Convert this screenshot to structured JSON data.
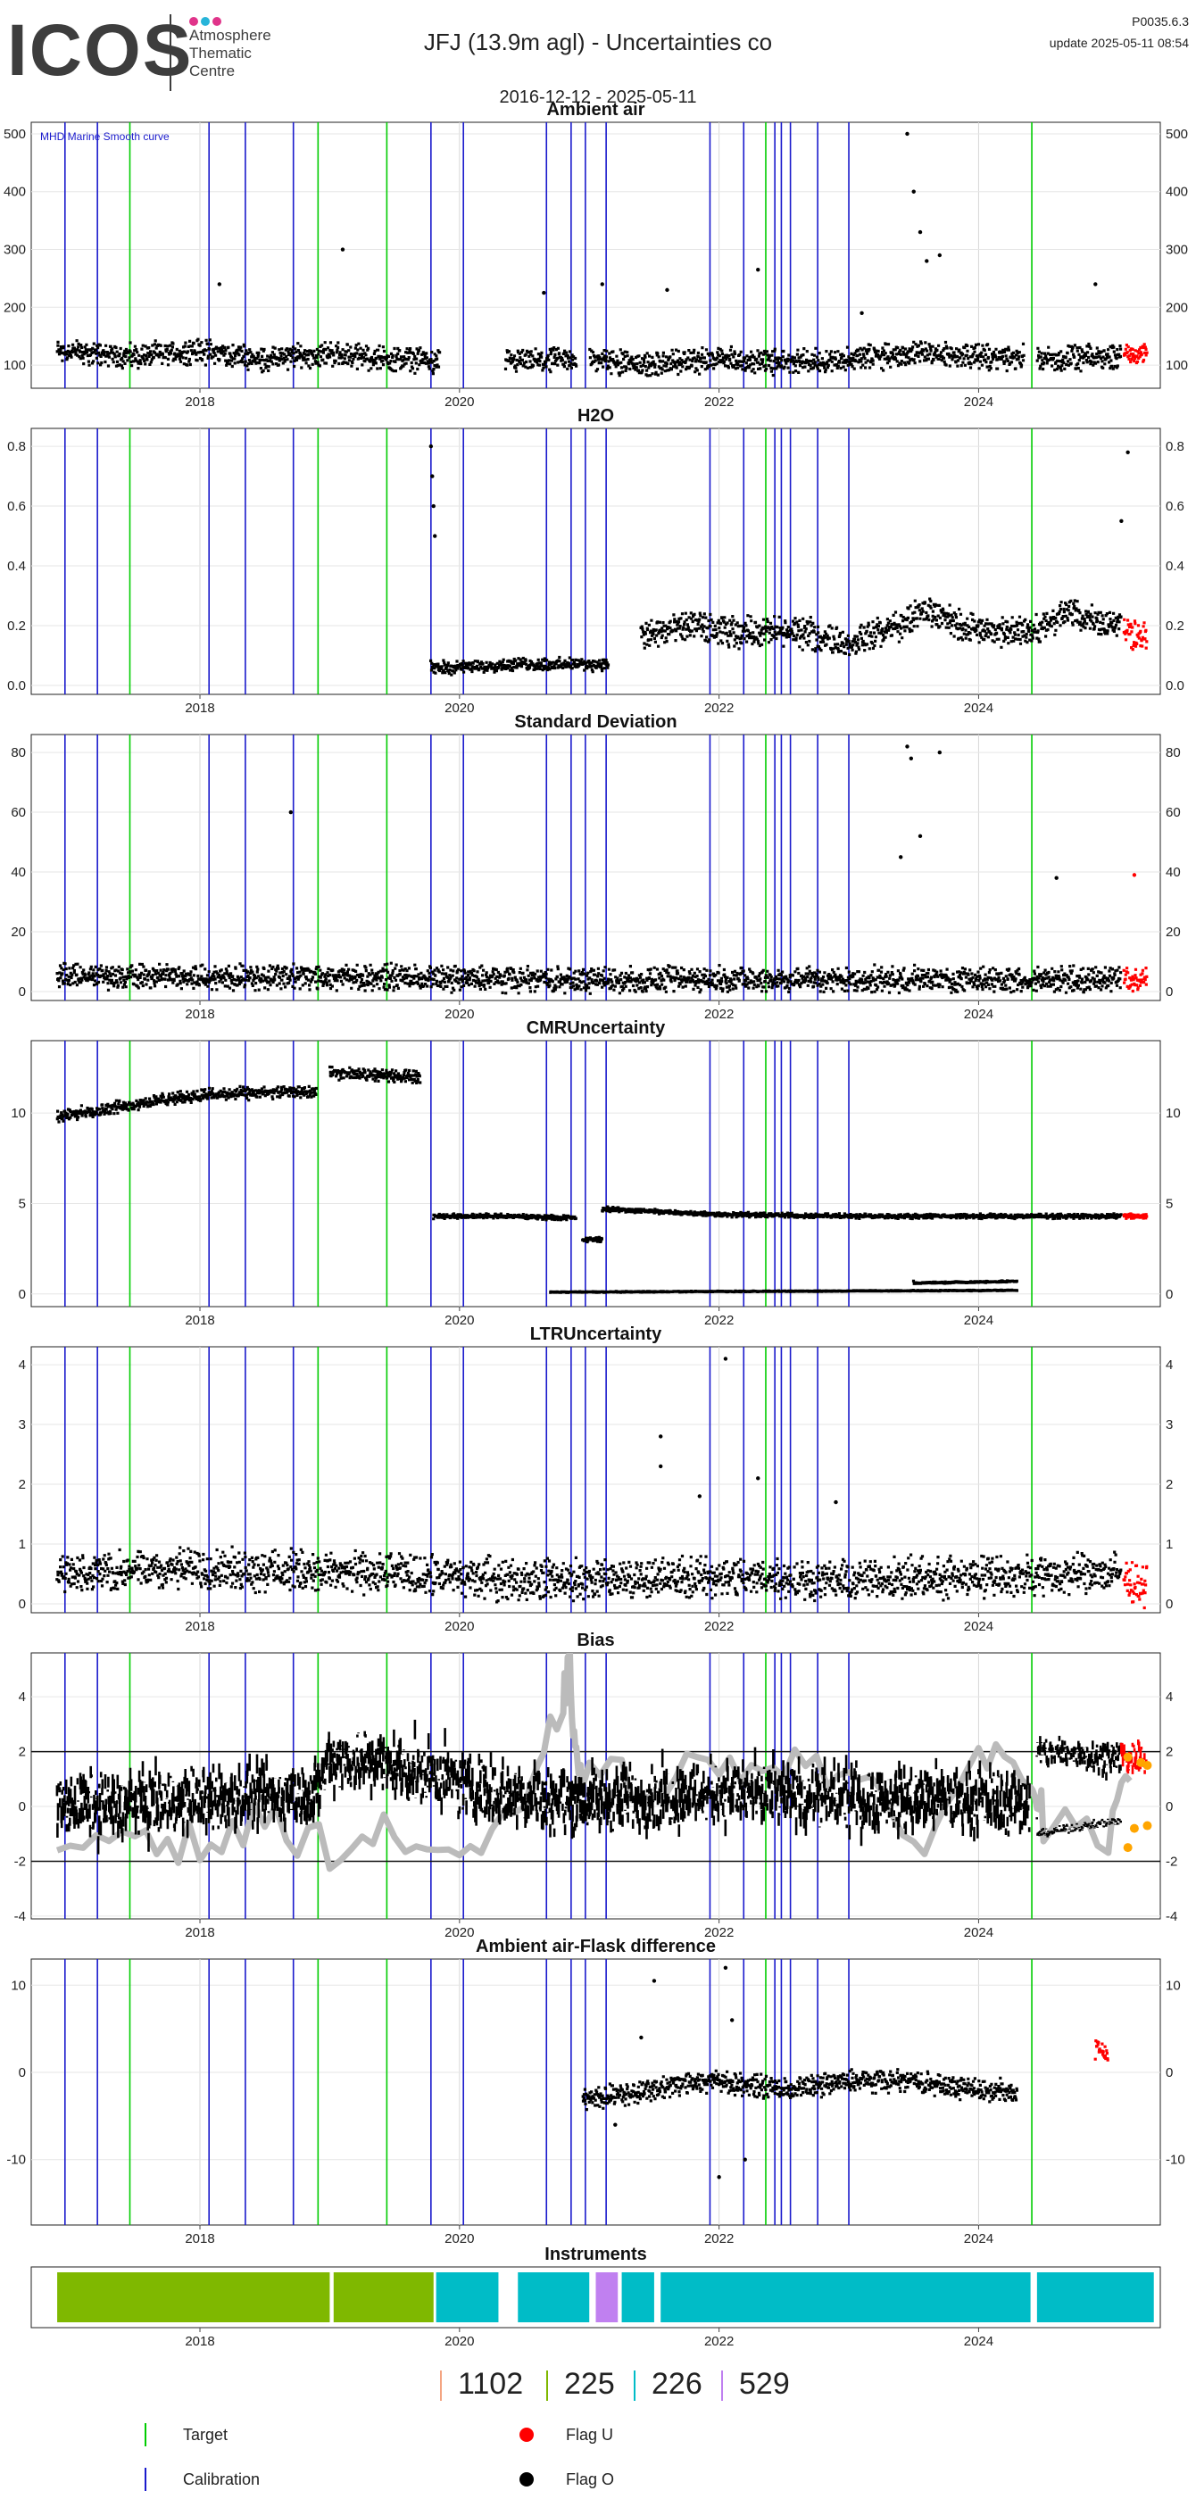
{
  "header": {
    "logo_text": "ICOS",
    "logo_subtitle": [
      "Atmosphere",
      "Thematic",
      "Centre"
    ],
    "logo_dot_colors": [
      "#e0348a",
      "#27b4d9",
      "#e0348a"
    ],
    "title": "JFJ  (13.9m agl) - Uncertainties co",
    "date_range": "2016-12-12 - 2025-05-11",
    "version": "P0035.6.3",
    "update": "update  2025-05-11 08:54"
  },
  "colors": {
    "target": "#00cc00",
    "calibration": "#1a1acc",
    "flag_u": "#ff0000",
    "flag_o": "#000000",
    "orange": "#ffa500",
    "grey": "#bbbbbb"
  },
  "markers": {
    "calibration_x": [
      2016.96,
      2017.21,
      2018.07,
      2018.35,
      2018.72,
      2019.78,
      2020.03,
      2020.67,
      2020.86,
      2020.97,
      2021.13,
      2021.93,
      2022.19,
      2022.43,
      2022.48,
      2022.55,
      2022.76,
      2023.0
    ],
    "target_x": [
      2017.46,
      2018.91,
      2019.44,
      2022.36,
      2024.41
    ]
  },
  "chart_data": [
    {
      "type": "scatter",
      "title": "Ambient air",
      "annotation": "MHD Marine Smooth curve",
      "xlim": [
        2016.7,
        2025.4
      ],
      "ylim": [
        60,
        520
      ],
      "yticks": [
        100,
        200,
        300,
        400,
        500
      ],
      "xticks": [
        "2018",
        "2020",
        "2022",
        "2024"
      ],
      "x_tick_values": [
        2018,
        2020,
        2022,
        2024
      ],
      "gaps": [
        [
          2019.85,
          2020.35
        ],
        [
          2020.9,
          2021.0
        ],
        [
          2024.35,
          2024.45
        ]
      ],
      "series": [
        {
          "flag": "O",
          "trend": [
            [
              2016.9,
              125
            ],
            [
              2017.5,
              115
            ],
            [
              2018.0,
              125
            ],
            [
              2018.5,
              110
            ],
            [
              2019.0,
              120
            ],
            [
              2019.5,
              110
            ],
            [
              2020.4,
              105
            ],
            [
              2021.0,
              110
            ],
            [
              2021.5,
              100
            ],
            [
              2022.0,
              110
            ],
            [
              2022.5,
              105
            ],
            [
              2023.0,
              110
            ],
            [
              2023.5,
              120
            ],
            [
              2024.0,
              115
            ],
            [
              2024.6,
              110
            ],
            [
              2025.1,
              115
            ]
          ],
          "spread": 25
        },
        {
          "flag": "U",
          "trend": [
            [
              2025.12,
              125
            ],
            [
              2025.3,
              118
            ]
          ],
          "spread": 20
        }
      ],
      "spikes": [
        [
          2018.15,
          240
        ],
        [
          2019.1,
          300
        ],
        [
          2020.65,
          225
        ],
        [
          2021.1,
          240
        ],
        [
          2021.6,
          230
        ],
        [
          2022.3,
          265
        ],
        [
          2023.1,
          190
        ],
        [
          2023.45,
          500
        ],
        [
          2023.5,
          400
        ],
        [
          2023.55,
          330
        ],
        [
          2023.6,
          280
        ],
        [
          2023.7,
          290
        ],
        [
          2024.9,
          240
        ]
      ]
    },
    {
      "type": "scatter",
      "title": "H2O",
      "xlim": [
        2016.7,
        2025.4
      ],
      "ylim": [
        -0.03,
        0.86
      ],
      "yticks": [
        0.0,
        0.2,
        0.4,
        0.6,
        0.8
      ],
      "yticklabels": [
        "0.0",
        "0.2",
        "0.4",
        "0.6",
        "0.8"
      ],
      "xticks": [
        "2018",
        "2020",
        "2022",
        "2024"
      ],
      "x_tick_values": [
        2018,
        2020,
        2022,
        2024
      ],
      "series": [
        {
          "flag": "O",
          "trend": [
            [
              2019.78,
              0.06
            ],
            [
              2020.0,
              0.06
            ],
            [
              2020.4,
              0.07
            ],
            [
              2021.15,
              0.07
            ]
          ],
          "spread": 0.025
        },
        {
          "flag": "O",
          "trend": [
            [
              2021.4,
              0.16
            ],
            [
              2021.8,
              0.2
            ],
            [
              2022.0,
              0.18
            ],
            [
              2022.6,
              0.18
            ],
            [
              2023.0,
              0.14
            ],
            [
              2023.4,
              0.2
            ],
            [
              2023.6,
              0.25
            ],
            [
              2024.0,
              0.18
            ],
            [
              2024.4,
              0.18
            ],
            [
              2024.7,
              0.24
            ],
            [
              2025.1,
              0.2
            ]
          ],
          "spread": 0.06
        },
        {
          "flag": "U",
          "trend": [
            [
              2025.12,
              0.18
            ],
            [
              2025.3,
              0.16
            ]
          ],
          "spread": 0.06
        }
      ],
      "spikes": [
        [
          2019.78,
          0.8
        ],
        [
          2019.79,
          0.7
        ],
        [
          2019.8,
          0.6
        ],
        [
          2019.81,
          0.5
        ],
        [
          2025.15,
          0.78
        ],
        [
          2025.1,
          0.55
        ]
      ]
    },
    {
      "type": "scatter",
      "title": "Standard Deviation",
      "xlim": [
        2016.7,
        2025.4
      ],
      "ylim": [
        -3,
        86
      ],
      "yticks": [
        0,
        20,
        40,
        60,
        80
      ],
      "xticks": [
        "2018",
        "2020",
        "2022",
        "2024"
      ],
      "x_tick_values": [
        2018,
        2020,
        2022,
        2024
      ],
      "series": [
        {
          "flag": "O",
          "trend": [
            [
              2016.9,
              5
            ],
            [
              2018.0,
              5
            ],
            [
              2019.0,
              5
            ],
            [
              2020.5,
              4
            ],
            [
              2022.0,
              4
            ],
            [
              2023.0,
              4
            ],
            [
              2024.0,
              4
            ],
            [
              2025.1,
              4
            ]
          ],
          "spread": 5
        },
        {
          "flag": "U",
          "trend": [
            [
              2025.12,
              4
            ],
            [
              2025.3,
              4
            ]
          ],
          "spread": 5
        }
      ],
      "spikes": [
        [
          2018.7,
          60
        ],
        [
          2023.45,
          82
        ],
        [
          2023.48,
          78
        ],
        [
          2023.7,
          80
        ],
        [
          2023.55,
          52
        ],
        [
          2023.4,
          45
        ],
        [
          2024.6,
          38
        ],
        [
          2025.2,
          39
        ]
      ]
    },
    {
      "type": "scatter",
      "title": "CMRUncertainty",
      "xlim": [
        2016.7,
        2025.4
      ],
      "ylim": [
        -0.7,
        14
      ],
      "yticks": [
        0,
        5,
        10
      ],
      "xticks": [
        "2018",
        "2020",
        "2022",
        "2024"
      ],
      "x_tick_values": [
        2018,
        2020,
        2022,
        2024
      ],
      "series": [
        {
          "flag": "O",
          "trend": [
            [
              2016.9,
              9.8
            ],
            [
              2017.5,
              10.5
            ],
            [
              2018.0,
              11.0
            ],
            [
              2018.9,
              11.2
            ]
          ],
          "spread": 0.4
        },
        {
          "flag": "O",
          "trend": [
            [
              2019.0,
              12.2
            ],
            [
              2019.7,
              12.0
            ]
          ],
          "spread": 0.4
        },
        {
          "flag": "O",
          "trend": [
            [
              2019.8,
              4.3
            ],
            [
              2020.3,
              4.3
            ],
            [
              2020.9,
              4.2
            ]
          ],
          "spread": 0.15
        },
        {
          "flag": "O",
          "trend": [
            [
              2020.95,
              3.0
            ],
            [
              2021.1,
              3.0
            ]
          ],
          "spread": 0.15
        },
        {
          "flag": "O",
          "trend": [
            [
              2021.1,
              4.7
            ],
            [
              2022.0,
              4.4
            ],
            [
              2023.0,
              4.3
            ],
            [
              2025.1,
              4.3
            ]
          ],
          "spread": 0.15
        },
        {
          "flag": "O",
          "trend": [
            [
              2020.7,
              0.1
            ],
            [
              2024.3,
              0.2
            ]
          ],
          "spread": 0.03
        },
        {
          "flag": "O",
          "trend": [
            [
              2023.5,
              0.6
            ],
            [
              2024.3,
              0.7
            ]
          ],
          "spread": 0.05
        },
        {
          "flag": "U",
          "trend": [
            [
              2025.12,
              4.3
            ],
            [
              2025.3,
              4.3
            ]
          ],
          "spread": 0.15
        }
      ],
      "spikes": []
    },
    {
      "type": "scatter",
      "title": "LTRUncertainty",
      "xlim": [
        2016.7,
        2025.4
      ],
      "ylim": [
        -0.15,
        4.3
      ],
      "yticks": [
        0,
        1,
        2,
        3,
        4
      ],
      "xticks": [
        "2018",
        "2020",
        "2022",
        "2024"
      ],
      "x_tick_values": [
        2018,
        2020,
        2022,
        2024
      ],
      "series": [
        {
          "flag": "O",
          "trend": [
            [
              2016.9,
              0.5
            ],
            [
              2018.0,
              0.6
            ],
            [
              2019.5,
              0.5
            ],
            [
              2020.5,
              0.4
            ],
            [
              2022.0,
              0.45
            ],
            [
              2023.0,
              0.4
            ],
            [
              2024.0,
              0.45
            ],
            [
              2025.1,
              0.5
            ]
          ],
          "spread": 0.4
        },
        {
          "flag": "U",
          "trend": [
            [
              2025.12,
              0.4
            ],
            [
              2025.3,
              0.3
            ]
          ],
          "spread": 0.4
        }
      ],
      "spikes": [
        [
          2022.05,
          4.1
        ],
        [
          2021.55,
          2.8
        ],
        [
          2021.55,
          2.3
        ],
        [
          2021.85,
          1.8
        ],
        [
          2022.3,
          2.1
        ],
        [
          2022.9,
          1.7
        ]
      ]
    },
    {
      "type": "line",
      "title": "Bias",
      "xlim": [
        2016.7,
        2025.4
      ],
      "ylim": [
        -4.1,
        5.6
      ],
      "yticks": [
        -4,
        -2,
        0,
        2,
        4
      ],
      "xticks": [
        "2018",
        "2020",
        "2022",
        "2024"
      ],
      "x_tick_values": [
        2018,
        2020,
        2022,
        2024
      ],
      "hlines": [
        2,
        -2
      ],
      "series": [
        {
          "flag": "O",
          "trend": [
            [
              2016.9,
              0.0
            ],
            [
              2018.0,
              0.2
            ],
            [
              2018.9,
              0.5
            ],
            [
              2019.0,
              1.8
            ],
            [
              2019.5,
              1.5
            ],
            [
              2020.3,
              0.5
            ],
            [
              2021.0,
              0.2
            ],
            [
              2022.0,
              0.5
            ],
            [
              2023.0,
              0.3
            ],
            [
              2024.4,
              0.2
            ]
          ],
          "spread": 1.2
        },
        {
          "flag": "O",
          "trend": [
            [
              2024.45,
              2.0
            ],
            [
              2025.1,
              1.8
            ]
          ],
          "spread": 0.6
        },
        {
          "flag": "O",
          "trend": [
            [
              2024.45,
              -1.0
            ],
            [
              2025.1,
              -0.5
            ]
          ],
          "spread": 0.15
        },
        {
          "flag": "U",
          "trend": [
            [
              2025.1,
              1.8
            ],
            [
              2025.3,
              1.7
            ]
          ],
          "spread": 0.7
        }
      ],
      "grey_line": [
        [
          2016.9,
          -1.5
        ],
        [
          2017.5,
          -0.8
        ],
        [
          2018.0,
          -1.5
        ],
        [
          2018.5,
          -0.5
        ],
        [
          2019.0,
          -1.5
        ],
        [
          2019.5,
          -1.0
        ],
        [
          2020.0,
          -1.8
        ],
        [
          2020.5,
          -0.5
        ],
        [
          2020.8,
          4.0
        ],
        [
          2020.85,
          5.0
        ],
        [
          2020.9,
          1.5
        ],
        [
          2021.0,
          1.0
        ],
        [
          2021.5,
          1.0
        ],
        [
          2022.0,
          1.5
        ],
        [
          2022.5,
          1.8
        ],
        [
          2023.0,
          1.2
        ],
        [
          2023.5,
          -1.5
        ],
        [
          2024.0,
          1.8
        ],
        [
          2024.4,
          1.5
        ],
        [
          2024.5,
          -0.5
        ],
        [
          2025.0,
          -1.5
        ],
        [
          2025.2,
          1.8
        ]
      ],
      "orange_points": [
        [
          2025.15,
          1.8
        ],
        [
          2025.25,
          1.6
        ],
        [
          2025.3,
          1.5
        ],
        [
          2025.15,
          -1.5
        ],
        [
          2025.2,
          -0.8
        ],
        [
          2025.3,
          -0.7
        ]
      ],
      "spikes": []
    },
    {
      "type": "scatter",
      "title": "Ambient air-Flask difference",
      "xlim": [
        2016.7,
        2025.4
      ],
      "ylim": [
        -17.5,
        13
      ],
      "yticks": [
        -10,
        0,
        10
      ],
      "xticks": [
        "2018",
        "2020",
        "2022",
        "2024"
      ],
      "x_tick_values": [
        2018,
        2020,
        2022,
        2024
      ],
      "series": [
        {
          "flag": "O",
          "trend": [
            [
              2020.95,
              -3
            ],
            [
              2021.5,
              -2
            ],
            [
              2021.8,
              -1
            ],
            [
              2022.0,
              -1
            ],
            [
              2022.5,
              -2
            ],
            [
              2023.0,
              -1
            ],
            [
              2023.5,
              -1
            ],
            [
              2024.0,
              -2
            ],
            [
              2024.3,
              -2
            ]
          ],
          "spread": 1.5
        },
        {
          "flag": "U",
          "trend": [
            [
              2024.9,
              3
            ],
            [
              2025.0,
              2
            ]
          ],
          "spread": 1.0
        }
      ],
      "spikes": [
        [
          2021.5,
          10.5
        ],
        [
          2022.05,
          12
        ],
        [
          2022.1,
          6
        ],
        [
          2021.4,
          4
        ],
        [
          2022.2,
          -10
        ],
        [
          2022.0,
          -12
        ],
        [
          2021.2,
          -6
        ]
      ]
    },
    {
      "type": "timeline",
      "title": "Instruments",
      "xlim": [
        2016.7,
        2025.4
      ],
      "xticks": [
        "2018",
        "2020",
        "2022",
        "2024"
      ],
      "x_tick_values": [
        2018,
        2020,
        2022,
        2024
      ],
      "segments": [
        {
          "instrument": "225",
          "start": 2016.9,
          "end": 2019.0
        },
        {
          "instrument": "225",
          "start": 2019.03,
          "end": 2019.8
        },
        {
          "instrument": "226",
          "start": 2019.82,
          "end": 2020.3
        },
        {
          "instrument": "226",
          "start": 2020.45,
          "end": 2021.0
        },
        {
          "instrument": "529",
          "start": 2021.05,
          "end": 2021.22
        },
        {
          "instrument": "226",
          "start": 2021.25,
          "end": 2021.5
        },
        {
          "instrument": "226",
          "start": 2021.55,
          "end": 2024.4
        },
        {
          "instrument": "226",
          "start": 2024.45,
          "end": 2025.35
        }
      ]
    }
  ],
  "instruments_legend": [
    {
      "label": "1102",
      "color": "#f4a582"
    },
    {
      "label": "225",
      "color": "#7fb800"
    },
    {
      "label": "226",
      "color": "#00bcc7"
    },
    {
      "label": "529",
      "color": "#c080f0"
    }
  ],
  "line_legend": {
    "target": "Target",
    "calibration": "Calibration",
    "flag_u": "Flag U",
    "flag_o": "Flag O"
  }
}
